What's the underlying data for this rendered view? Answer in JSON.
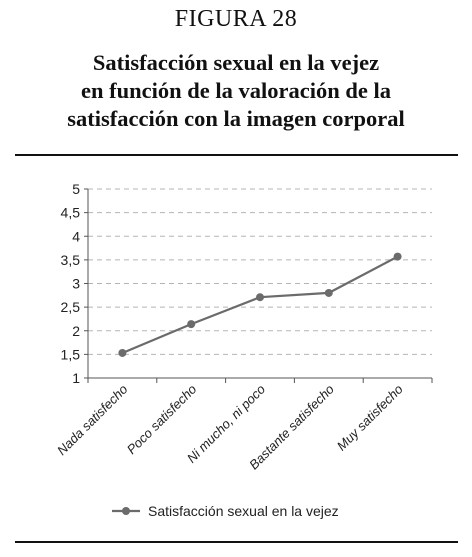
{
  "figure_label": "FIGURA 28",
  "title": "Satisfacción sexual en la vejez\nen función de la valoración de la\nsatisfacción con la imagen corporal",
  "chart_data": {
    "type": "line",
    "categories": [
      "Nada satisfecho",
      "Poco satisfecho",
      "Ni mucho, ni poco",
      "Bastante satisfecho",
      "Muy satisfecho"
    ],
    "series": [
      {
        "name": "Satisfacción sexual en la vejez",
        "values": [
          1.53,
          2.14,
          2.71,
          2.8,
          3.57
        ],
        "color": "#6b6b6b"
      }
    ],
    "y_ticks": [
      "1",
      "1,5",
      "2",
      "2,5",
      "3",
      "3,5",
      "4",
      "4,5",
      "5"
    ],
    "ylim": [
      1,
      5
    ],
    "grid": true,
    "grid_style": "dashed",
    "legend_position": "bottom"
  }
}
